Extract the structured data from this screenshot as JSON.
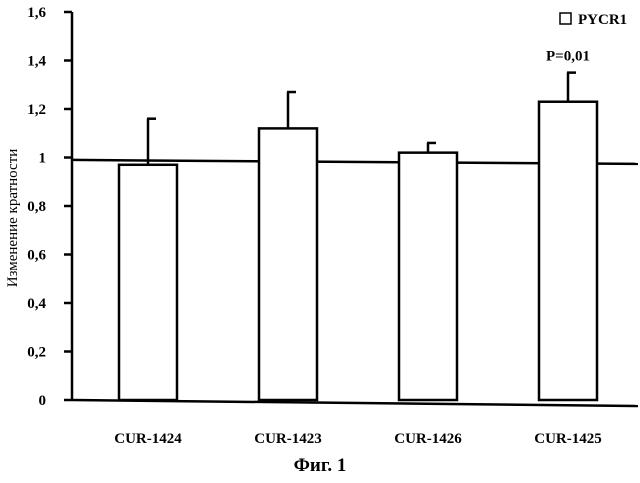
{
  "chart_data": {
    "type": "bar",
    "categories": [
      "CUR-1424",
      "CUR-1423",
      "CUR-1426",
      "CUR-1425"
    ],
    "series": [
      {
        "name": "PYCR1",
        "values": [
          0.97,
          1.12,
          1.02,
          1.23
        ],
        "errors": [
          0.19,
          0.15,
          0.04,
          0.12
        ]
      }
    ],
    "ylabel": "Изменение кратности",
    "ylim": [
      0,
      1.6
    ],
    "yticks": [
      "0",
      "0,2",
      "0,4",
      "0,6",
      "0,8",
      "1",
      "1,2",
      "1,4",
      "1,6"
    ],
    "yticks_values": [
      0,
      0.2,
      0.4,
      0.6,
      0.8,
      1.0,
      1.2,
      1.4,
      1.6
    ],
    "reference_line": 0.99,
    "annotations": [
      {
        "category": "CUR-1425",
        "text": "P=0,01"
      }
    ],
    "legend_position": "top-right",
    "grid": false,
    "bar_fill": "#ffffff",
    "stroke_color": "#000000"
  },
  "figure": {
    "caption": "Фиг. 1"
  }
}
